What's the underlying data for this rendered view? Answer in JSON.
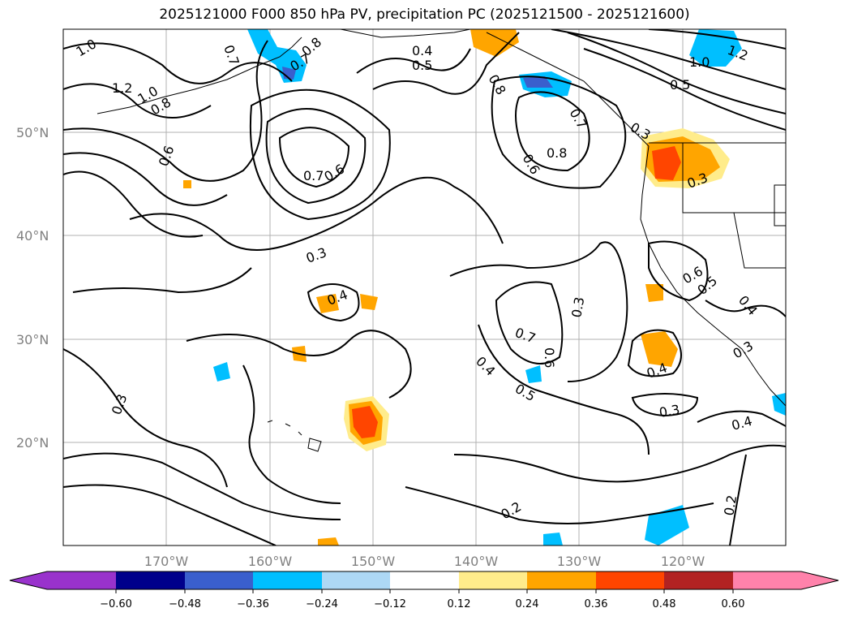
{
  "title": "2025121000 F000 850 hPa PV, precipitation PC (2025121500 - 2025121600)",
  "lat_labels": [
    "50°N",
    "40°N",
    "30°N",
    "20°N"
  ],
  "lon_labels": [
    "170°W",
    "160°W",
    "150°W",
    "140°W",
    "130°W",
    "120°W"
  ],
  "contour_labels": {
    "l1": "1.0",
    "l2": "1.2",
    "l3": "1.0",
    "l4": "0.8",
    "l5": "0.7",
    "l6": "0.8",
    "l7": "0.7",
    "l8": "0.6",
    "l9": "0.7",
    "l10": "0.6",
    "l11": "0.4",
    "l12": "0.5",
    "l13": "0.8",
    "l14": "0.7",
    "l15": "0.8",
    "l16": "0.6",
    "l17": "1.0",
    "l18": "1.2",
    "l19": "0.5",
    "l20": "0.3",
    "l21": "0.3",
    "l22": "0.3",
    "l23": "0.4",
    "l24": "0.3",
    "l25": "0.7",
    "l26": "0.6",
    "l27": "0.6",
    "l28": "0.5",
    "l29": "0.4",
    "l30": "0.5",
    "l31": "0.4",
    "l32": "0.4",
    "l33": "0.3",
    "l34": "0.4",
    "l35": "0.2",
    "l36": "0.2",
    "l37": "0.3",
    "l38": "0.3"
  },
  "colorbar": {
    "colors": [
      "#9932cc",
      "#00008b",
      "#3a5fcd",
      "#00bfff",
      "#add8f5",
      "#ffffff",
      "#ffec8b",
      "#ffa500",
      "#ff4500",
      "#b22222",
      "#ff82ab"
    ],
    "ticks": [
      "−0.60",
      "−0.48",
      "−0.36",
      "−0.24",
      "−0.12",
      "0.12",
      "0.24",
      "0.36",
      "0.48",
      "0.60"
    ]
  }
}
